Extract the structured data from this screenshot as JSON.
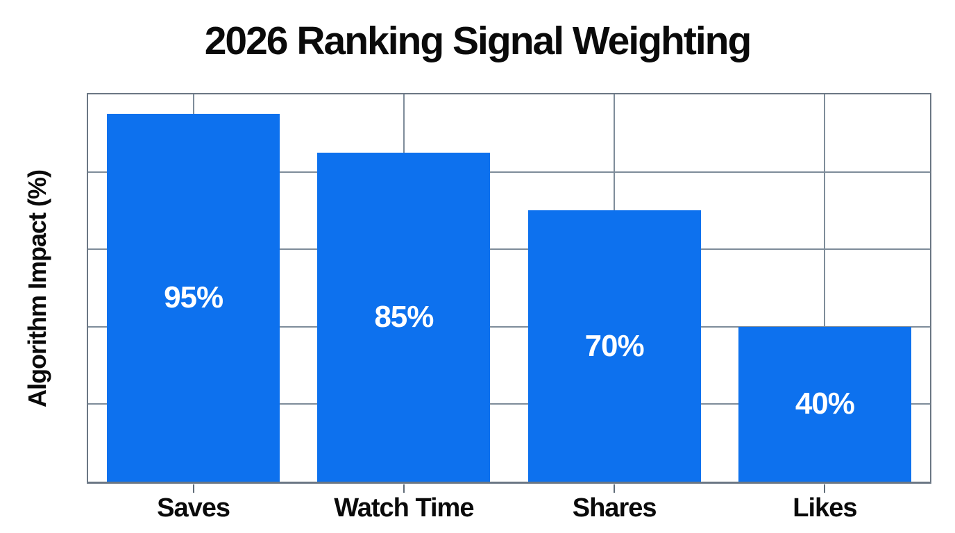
{
  "chart_data": {
    "type": "bar",
    "title": "2026 Ranking Signal Weighting",
    "xlabel": "",
    "ylabel": "Algorithm Impact (%)",
    "categories": [
      "Saves",
      "Watch Time",
      "Shares",
      "Likes"
    ],
    "values": [
      95,
      85,
      70,
      40
    ],
    "value_labels": [
      "95%",
      "85%",
      "70%",
      "40%"
    ],
    "ylim": [
      0,
      100
    ],
    "gridline_step": 20,
    "grid": "on",
    "y_tick_labels_visible": false,
    "legend_position": "none",
    "colors": {
      "bar_fill": "#0d71ee",
      "gridline": "#7e8c9a",
      "frame": "#6b7784",
      "tick": "#5f6b77",
      "title_text": "#0a0a0a",
      "axis_text": "#0a0a0a",
      "value_label_text": "#ffffff",
      "background": "#ffffff"
    }
  }
}
